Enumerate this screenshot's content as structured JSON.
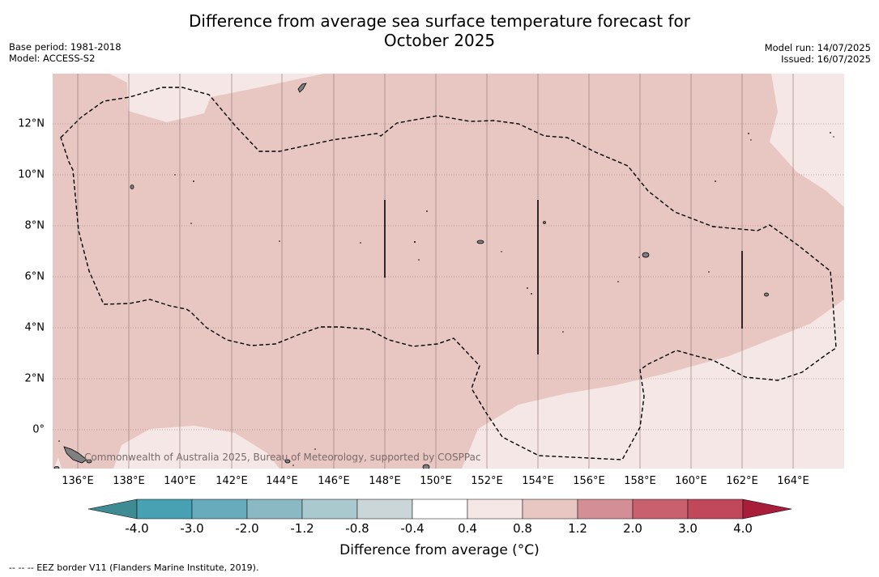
{
  "title_line1": "Difference from average sea surface temperature forecast for",
  "title_line2": "October 2025",
  "meta_left": {
    "base_period": "Base period: 1981-2018",
    "model": "Model: ACCESS-S2"
  },
  "meta_right": {
    "model_run": "Model run: 14/07/2025",
    "issued": "Issued: 16/07/2025"
  },
  "map": {
    "lon_labels": [
      "136°E",
      "138°E",
      "140°E",
      "142°E",
      "144°E",
      "146°E",
      "148°E",
      "150°E",
      "152°E",
      "154°E",
      "156°E",
      "158°E",
      "160°E",
      "162°E",
      "164°E"
    ],
    "lat_labels": [
      "12°N",
      "10°N",
      "8°N",
      "6°N",
      "4°N",
      "2°N",
      "0°"
    ],
    "copyright": "Commonwealth of Australia 2025, Bureau of Meteorology, supported by COSPPac",
    "colors": {
      "band_0_4_0_8": "#f5e7e5",
      "band_0_8_1_2": "#e8c7c2",
      "land": "#808080"
    }
  },
  "colorbar": {
    "ticks": [
      "-4.0",
      "-3.0",
      "-2.0",
      "-1.2",
      "-0.8",
      "-0.4",
      "0.4",
      "0.8",
      "1.2",
      "2.0",
      "3.0",
      "4.0"
    ],
    "colors": [
      "#3f8b94",
      "#47a1b2",
      "#68abbd",
      "#8ab8c3",
      "#aac9ce",
      "#cbd6d8",
      "#ffffff",
      "#f5e7e5",
      "#e8c7c2",
      "#d48e96",
      "#c8616d",
      "#c0485a",
      "#a81d3a"
    ],
    "label": "Difference from average (°C)"
  },
  "footnote": "--  --  -- EEZ border V11 (Flanders Marine Institute, 2019)."
}
